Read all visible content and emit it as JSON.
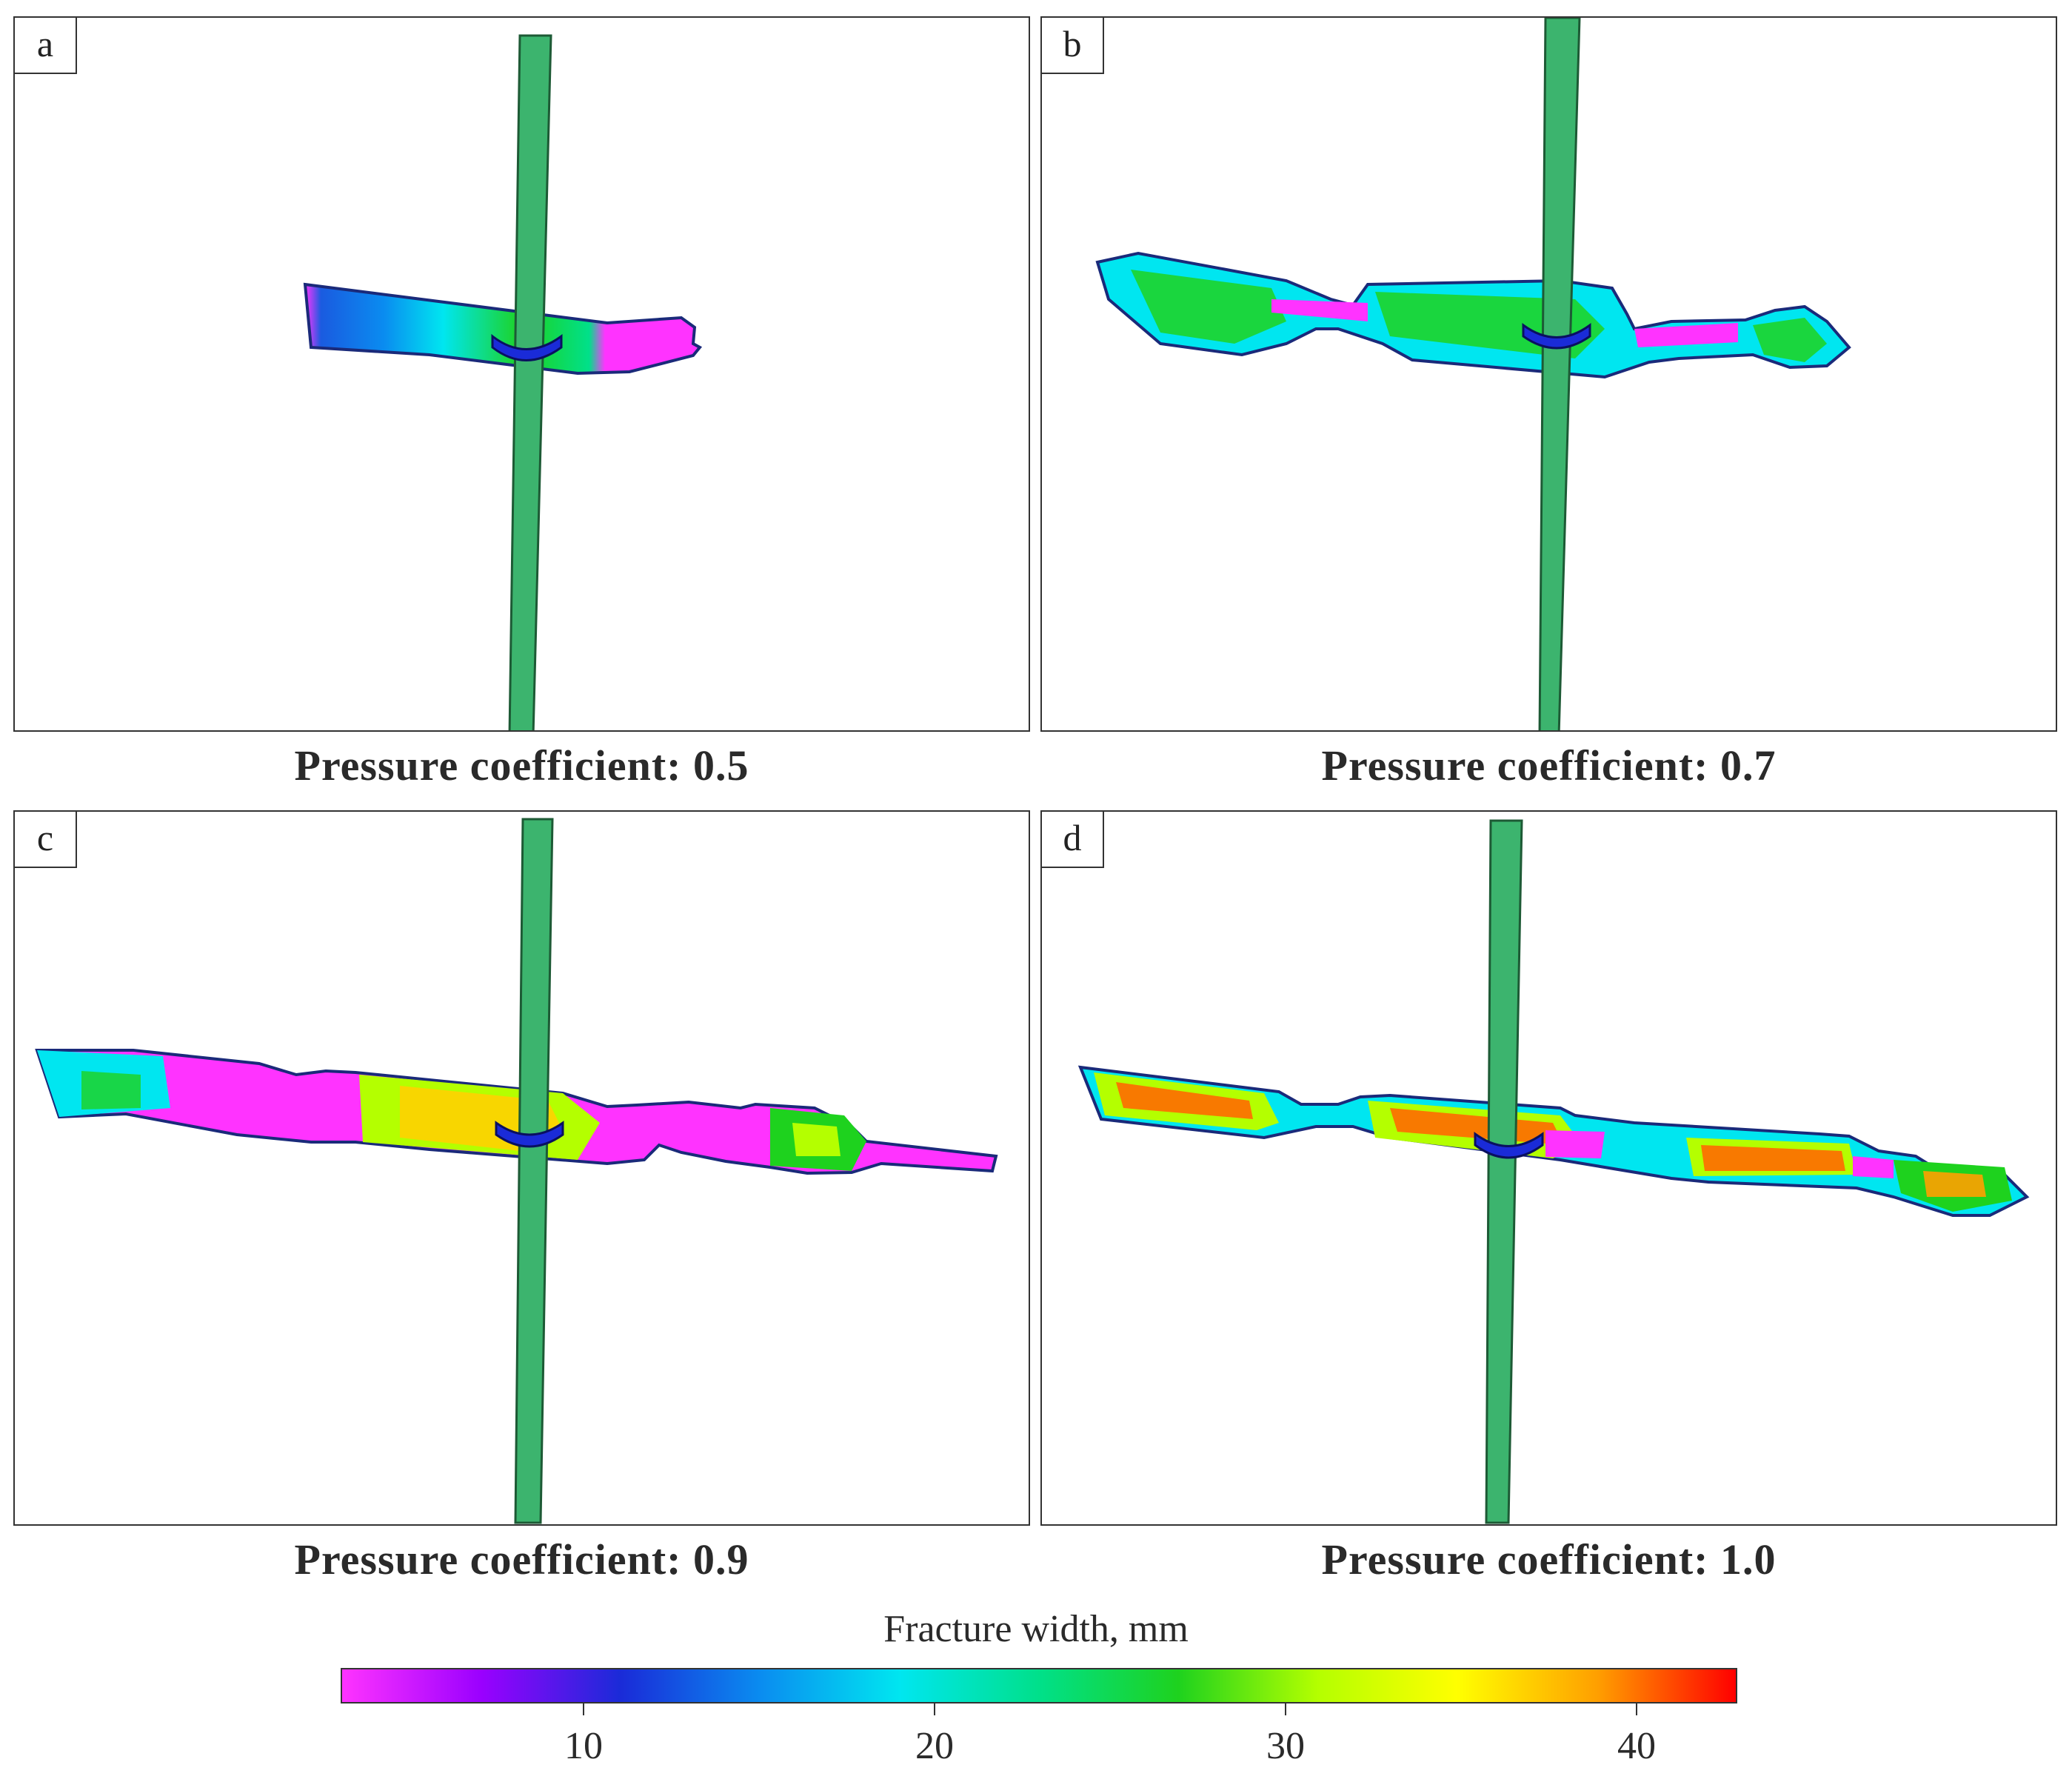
{
  "panels": [
    {
      "tag": "a",
      "caption": "Pressure coefficient: 0.5"
    },
    {
      "tag": "b",
      "caption": "Pressure coefficient: 0.7"
    },
    {
      "tag": "c",
      "caption": "Pressure coefficient: 0.9"
    },
    {
      "tag": "d",
      "caption": "Pressure coefficient: 1.0"
    }
  ],
  "colorbar": {
    "title": "Fracture width, mm",
    "ticks": [
      "10",
      "20",
      "30",
      "40"
    ],
    "colormap": [
      "#ff33ff",
      "#9a00ff",
      "#1a2bd8",
      "#0a8cf0",
      "#00e6f0",
      "#00e08a",
      "#1ed21e",
      "#b4ff00",
      "#ffff00",
      "#ffa000",
      "#ff0000"
    ],
    "well_color": "#3cb46e",
    "outline_color": "#1a2a7a"
  }
}
